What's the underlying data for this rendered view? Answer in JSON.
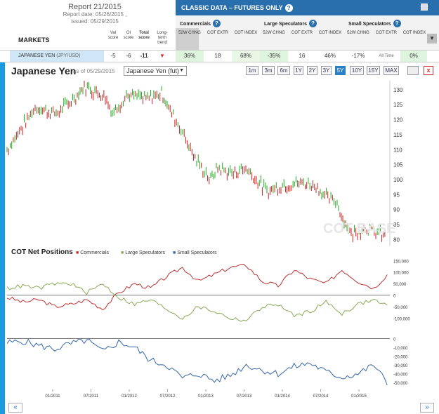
{
  "report": {
    "title": "Report 21/2015",
    "date": "Report date: 05/26/2015 ,",
    "issued": "issued: 05/29/2015"
  },
  "markets_label": "MARKETS",
  "score_headers": [
    "Val score",
    "OI score",
    "Total score",
    "Long-term trend"
  ],
  "header": {
    "title": "CLASSIC DATA – FUTURES ONLY",
    "print_icon": "printer-icon"
  },
  "groups": [
    "Commercials",
    "Large Speculators",
    "Small Speculators"
  ],
  "subheaders": [
    "52W CHNG",
    "COT EXTR",
    "COT INDEX",
    "52W CHNG",
    "COT EXTR",
    "COT INDEX",
    "52W CHNG",
    "COT EXTR",
    "COT INDEX"
  ],
  "row": {
    "market": "JAPANESE YEN",
    "pair": "(JPY/USD)",
    "val": "-5",
    "oi": "-6",
    "total": "-11",
    "com_chng": "36%",
    "com_extr": "18",
    "com_index": "68%",
    "ls_chng": "-35%",
    "ls_extr": "16",
    "ls_index": "46%",
    "ss_chng": "-17%",
    "ss_extr": "All Time",
    "ss_index": "0%"
  },
  "chart": {
    "title": "Japanese Yen",
    "asof": "as of 05/29/2015",
    "select": "Japanese Yen (fut)",
    "ranges": [
      "1m",
      "3m",
      "6m",
      "1Y",
      "2Y",
      "3Y",
      "5Y",
      "10Y",
      "15Y",
      "MAX"
    ],
    "active_range": "5Y",
    "watermark": "COT BASE"
  },
  "cot": {
    "title": "COT Net Positions",
    "legend": [
      "Commercials",
      "Large Speculators",
      "Small Speculators"
    ]
  },
  "xlabels": [
    "01/2011",
    "07/2011",
    "01/2012",
    "07/2012",
    "01/2013",
    "07/2013",
    "01/2014",
    "07/2014",
    "01/2015"
  ],
  "chart_data": [
    {
      "type": "line",
      "title": "Japanese Yen",
      "y_ticks": [
        80,
        85,
        90,
        95,
        100,
        105,
        110,
        115,
        120,
        125,
        130
      ],
      "ylim": [
        78,
        133
      ],
      "series": [
        {
          "name": "Japanese Yen",
          "x": [
            "2010-11",
            "2011-03",
            "2011-06",
            "2011-09",
            "2011-10",
            "2012-01",
            "2012-02",
            "2012-04",
            "2012-07",
            "2012-09",
            "2012-10",
            "2012-12",
            "2013-02",
            "2013-04",
            "2013-05",
            "2013-07",
            "2013-09",
            "2013-12",
            "2014-02",
            "2014-05",
            "2014-07",
            "2014-08",
            "2014-10",
            "2014-11",
            "2014-12",
            "2015-02",
            "2015-05"
          ],
          "values": [
            110,
            124,
            122,
            128,
            131,
            128,
            122,
            128,
            127,
            129,
            124,
            116,
            106,
            100,
            104,
            102,
            104,
            96,
            98,
            99,
            98,
            95,
            92,
            86,
            82,
            84,
            81
          ]
        }
      ]
    },
    {
      "type": "line",
      "title": "COT Net Positions",
      "y_ticks": [
        150000,
        100000,
        50000,
        0,
        -50000,
        -100000
      ],
      "series": [
        {
          "name": "Commercials",
          "values": [
            -10000,
            -30000,
            -20000,
            -50000,
            -40000,
            -20000,
            -60000,
            10000,
            50000,
            30000,
            80000,
            120000,
            60000,
            90000,
            120000,
            130000,
            60000,
            40000,
            110000,
            70000,
            50000,
            110000,
            60000,
            30000,
            100000
          ]
        },
        {
          "name": "Large Speculators",
          "values": [
            30000,
            40000,
            30000,
            50000,
            50000,
            10000,
            50000,
            -10000,
            -40000,
            -20000,
            -60000,
            -100000,
            -50000,
            -70000,
            -100000,
            -110000,
            -50000,
            -40000,
            -90000,
            -70000,
            -30000,
            -80000,
            -40000,
            -20000,
            -50000
          ]
        }
      ]
    },
    {
      "type": "line",
      "title": "Small Speculators",
      "y_ticks": [
        0,
        -10000,
        -20000,
        -30000,
        -40000,
        -50000
      ],
      "series": [
        {
          "name": "Small Speculators",
          "values": [
            -5000,
            -3000,
            -8000,
            -12000,
            -6000,
            -2000,
            -15000,
            -4000,
            -10000,
            -25000,
            -30000,
            -45000,
            -40000,
            -48000,
            -42000,
            -30000,
            -36000,
            -40000,
            -32000,
            -28000,
            -38000,
            -44000,
            -40000,
            -30000,
            -55000
          ]
        }
      ]
    }
  ],
  "pager": {
    "prev": "«",
    "next": "»"
  }
}
